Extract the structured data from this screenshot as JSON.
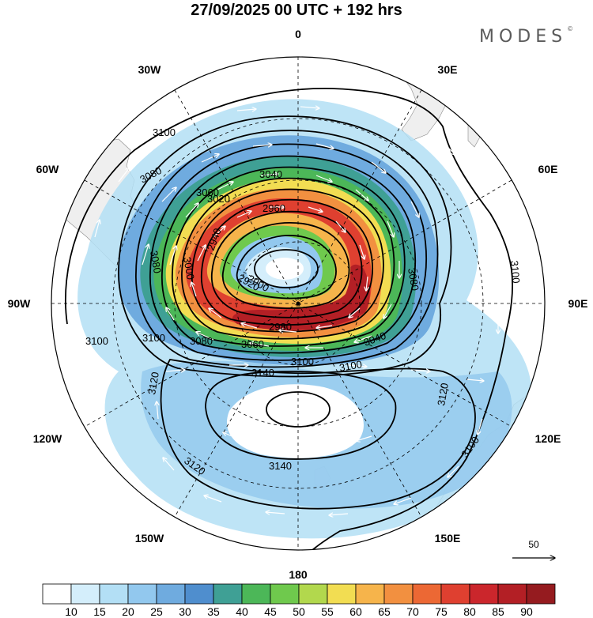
{
  "title": "27/09/2025  00 UTC  + 192 hrs",
  "brand": {
    "name": "MODES",
    "mark": "©"
  },
  "longitude_labels": [
    "0",
    "30E",
    "60E",
    "90E",
    "120E",
    "150E",
    "180",
    "150W",
    "120W",
    "90W",
    "60W",
    "30W"
  ],
  "contour_labels": [
    "3100",
    "3100",
    "3080",
    "3080",
    "3060",
    "3040",
    "3020",
    "3000",
    "2960",
    "2940",
    "2920",
    "2900",
    "2980",
    "3040",
    "3060",
    "3080",
    "3100",
    "3080",
    "3100",
    "3100",
    "3120",
    "3140",
    "3120",
    "3140",
    "3120",
    "3100",
    "3100"
  ],
  "vector_scale": {
    "value": "50"
  },
  "colorbar": {
    "colors": [
      "#ffffff",
      "#d4eefb",
      "#b3dff5",
      "#92c8ee",
      "#6fabdf",
      "#4f8ece",
      "#3fa095",
      "#4cb758",
      "#6fc94d",
      "#b2d84d",
      "#f2dd52",
      "#f6b44b",
      "#f29040",
      "#ec6834",
      "#df4030",
      "#cb262c",
      "#b31f25",
      "#951b1f"
    ],
    "labels": [
      "10",
      "15",
      "20",
      "25",
      "30",
      "35",
      "40",
      "45",
      "50",
      "55",
      "60",
      "65",
      "70",
      "75",
      "80",
      "85",
      "90"
    ]
  },
  "colors": {
    "contour": "#000000",
    "grid": "#000000",
    "land": "#efefef",
    "arrows": "#ffffff"
  }
}
